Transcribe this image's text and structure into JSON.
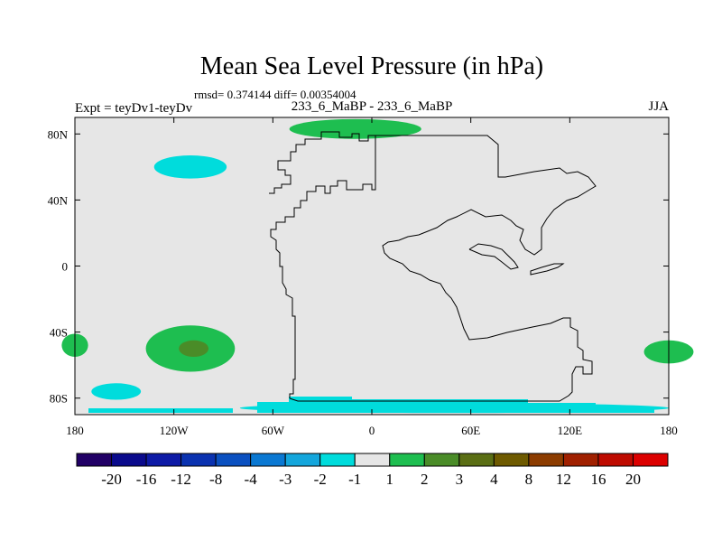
{
  "chart_data": {
    "type": "heatmap",
    "title": "Mean Sea Level Pressure (in hPa)",
    "stats": "rmsd= 0.374144 diff= 0.00354004",
    "left_label": "Expt = teyDv1-teyDv",
    "center_label": "233_6_MaBP - 233_6_MaBP",
    "right_label": "JJA",
    "x_ticks": [
      {
        "lon": -180,
        "label": "180"
      },
      {
        "lon": -120,
        "label": "120W"
      },
      {
        "lon": -60,
        "label": "60W"
      },
      {
        "lon": 0,
        "label": "0"
      },
      {
        "lon": 60,
        "label": "60E"
      },
      {
        "lon": 120,
        "label": "120E"
      },
      {
        "lon": 180,
        "label": "180"
      }
    ],
    "y_ticks": [
      {
        "lat": 80,
        "label": "80N"
      },
      {
        "lat": 40,
        "label": "40N"
      },
      {
        "lat": 0,
        "label": "0"
      },
      {
        "lat": -40,
        "label": "40S"
      },
      {
        "lat": -80,
        "label": "80S"
      }
    ],
    "xlim": [
      -180,
      180
    ],
    "ylim": [
      -90,
      90
    ],
    "colorbar": {
      "colors": [
        "#210066",
        "#0a0a8c",
        "#0d1aa6",
        "#0a32b0",
        "#0a50c0",
        "#0a78d2",
        "#14a6dc",
        "#00dcdc",
        "#e6e6e6",
        "#1ebe50",
        "#4a8c28",
        "#5a6e14",
        "#6e5a00",
        "#8c3c00",
        "#a02000",
        "#be0a00",
        "#dc0000"
      ],
      "labels": [
        "-20",
        "-16",
        "-12",
        "-8",
        "-4",
        "-3",
        "-2",
        "-1",
        "1",
        "2",
        "3",
        "4",
        "8",
        "12",
        "16",
        "20"
      ]
    },
    "anomaly_regions": [
      {
        "name": "north-pacific-low",
        "category": "-2 to -1",
        "color": "#00dcdc",
        "lon": -110,
        "lat": 60,
        "lon_radius": 22,
        "lat_radius": 7
      },
      {
        "name": "south-pacific-high",
        "category": "1 to 2",
        "color": "#1ebe50",
        "lon": -110,
        "lat": -50,
        "lon_radius": 27,
        "lat_radius": 14
      },
      {
        "name": "south-pacific-high-core",
        "category": "2 to 3",
        "color": "#4a8c28",
        "lon": -108,
        "lat": -50,
        "lon_radius": 9,
        "lat_radius": 5
      },
      {
        "name": "southern-ocean-low",
        "category": "-2 to -1",
        "color": "#00dcdc",
        "lon": -155,
        "lat": -76,
        "lon_radius": 15,
        "lat_radius": 5
      },
      {
        "name": "west-edge-high",
        "category": "1 to 2",
        "color": "#1ebe50",
        "lon": -180,
        "lat": -48,
        "lon_radius": 8,
        "lat_radius": 7
      },
      {
        "name": "east-edge-high",
        "category": "1 to 2",
        "color": "#1ebe50",
        "lon": 180,
        "lat": -52,
        "lon_radius": 15,
        "lat_radius": 7
      },
      {
        "name": "arctic-high",
        "category": "1 to 2",
        "color": "#1ebe50",
        "lon": -10,
        "lat": 83,
        "lon_radius": 40,
        "lat_radius": 6
      },
      {
        "name": "antarctic-low",
        "category": "-2 to -1",
        "color": "#00dcdc",
        "lon": 50,
        "lat": -86,
        "lon_radius": 130,
        "lat_radius": 3
      }
    ]
  }
}
